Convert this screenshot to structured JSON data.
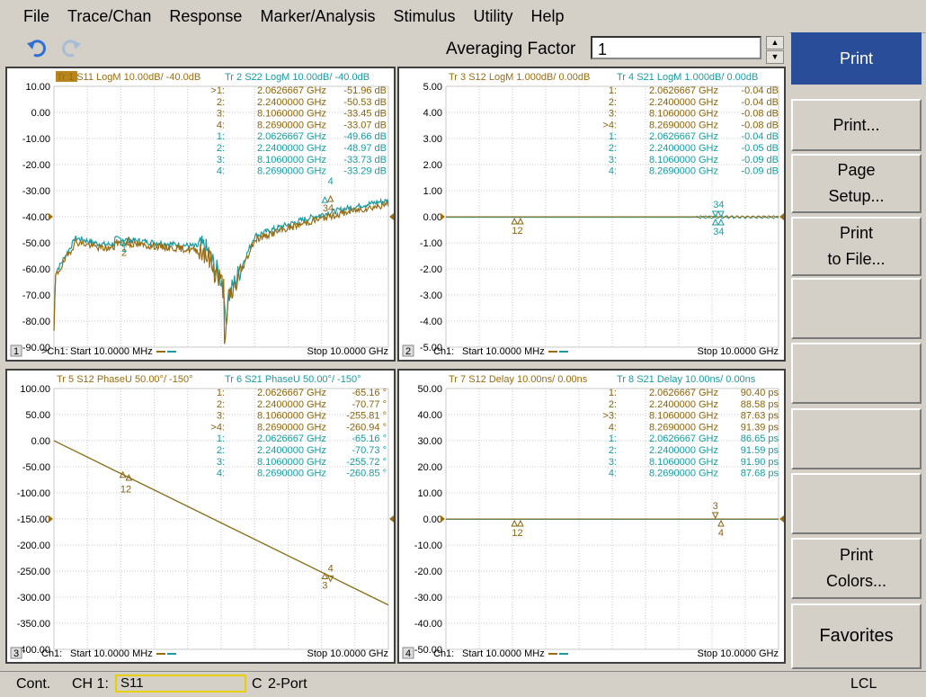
{
  "menu": [
    "File",
    "Trace/Chan",
    "Response",
    "Marker/Analysis",
    "Stimulus",
    "Utility",
    "Help"
  ],
  "toolbar": {
    "undo_icon": "undo-arrow-icon",
    "redo_icon": "redo-arrow-icon",
    "averaging_label": "Averaging Factor",
    "averaging_value": "1"
  },
  "softkeys": [
    {
      "label": "Print",
      "active": true
    },
    {
      "label": "Print..."
    },
    {
      "label": "Page\nSetup..."
    },
    {
      "label": "Print\nto File..."
    },
    {
      "label": ""
    },
    {
      "label": ""
    },
    {
      "label": ""
    },
    {
      "label": ""
    },
    {
      "label": "Print\nColors..."
    },
    {
      "label": "Favorites"
    }
  ],
  "colors": {
    "trace_odd": "#9a6c10",
    "trace_even": "#1b9aa0",
    "marker_gold": "#8a6410",
    "marker_teal": "#1b9aa0"
  },
  "windows": [
    {
      "num": "1",
      "ch_label": ">Ch1:",
      "start": "Start  10.0000 MHz",
      "stop": "Stop  10.0000 GHz",
      "traces": [
        {
          "text": "Tr  1  S11 LogM 10.00dB/  -40.0dB",
          "active": true
        },
        {
          "text": "Tr  2  S22 LogM 10.00dB/  -40.0dB"
        }
      ],
      "yticks": [
        "10.00",
        "0.00",
        "-10.00",
        "-20.00",
        "-30.00",
        "-40.00",
        "-50.00",
        "-60.00",
        "-70.00",
        "-80.00",
        "-90.00"
      ],
      "ref_index": 5,
      "markers": [
        {
          "n": ">1:",
          "f": "2.0626667 GHz",
          "v": "-51.96 dB",
          "c": "gold"
        },
        {
          "n": "2:",
          "f": "2.2400000 GHz",
          "v": "-50.53 dB",
          "c": "gold"
        },
        {
          "n": "3:",
          "f": "8.1060000 GHz",
          "v": "-33.45 dB",
          "c": "gold"
        },
        {
          "n": "4:",
          "f": "8.2690000 GHz",
          "v": "-33.07 dB",
          "c": "gold"
        },
        {
          "n": "1:",
          "f": "2.0626667 GHz",
          "v": "-49.66 dB",
          "c": "teal"
        },
        {
          "n": "2:",
          "f": "2.2400000 GHz",
          "v": "-48.97 dB",
          "c": "teal"
        },
        {
          "n": "3:",
          "f": "8.1060000 GHz",
          "v": "-33.73 dB",
          "c": "teal"
        },
        {
          "n": "4:",
          "f": "8.2690000 GHz",
          "v": "-33.29 dB",
          "c": "teal"
        }
      ],
      "mlabels": [
        "1",
        "2",
        "3",
        "4",
        "34"
      ]
    },
    {
      "num": "2",
      "ch_label": "Ch1:",
      "start": "Start  10.0000 MHz",
      "stop": "Stop  10.0000 GHz",
      "traces": [
        {
          "text": "Tr  3  S12 LogM 1.000dB/  0.00dB"
        },
        {
          "text": "Tr  4  S21 LogM 1.000dB/  0.00dB"
        }
      ],
      "yticks": [
        "5.00",
        "4.00",
        "3.00",
        "2.00",
        "1.00",
        "0.00",
        "-1.00",
        "-2.00",
        "-3.00",
        "-4.00",
        "-5.00"
      ],
      "ref_index": 5,
      "markers": [
        {
          "n": "1:",
          "f": "2.0626667 GHz",
          "v": "-0.04 dB",
          "c": "gold"
        },
        {
          "n": "2:",
          "f": "2.2400000 GHz",
          "v": "-0.04 dB",
          "c": "gold"
        },
        {
          "n": "3:",
          "f": "8.1060000 GHz",
          "v": "-0.08 dB",
          "c": "gold"
        },
        {
          "n": ">4:",
          "f": "8.2690000 GHz",
          "v": "-0.08 dB",
          "c": "gold"
        },
        {
          "n": "1:",
          "f": "2.0626667 GHz",
          "v": "-0.04 dB",
          "c": "teal"
        },
        {
          "n": "2:",
          "f": "2.2400000 GHz",
          "v": "-0.05 dB",
          "c": "teal"
        },
        {
          "n": "3:",
          "f": "8.1060000 GHz",
          "v": "-0.09 dB",
          "c": "teal"
        },
        {
          "n": "4:",
          "f": "8.2690000 GHz",
          "v": "-0.09 dB",
          "c": "teal"
        }
      ],
      "mlabels": [
        "12",
        "34",
        "34"
      ]
    },
    {
      "num": "3",
      "ch_label": "Ch1:",
      "start": "Start  10.0000 MHz",
      "stop": "Stop  10.0000 GHz",
      "traces": [
        {
          "text": "Tr  5  S12 PhaseU 50.00°/  -150°"
        },
        {
          "text": "Tr  6  S21 PhaseU 50.00°/  -150°"
        }
      ],
      "yticks": [
        "100.00",
        "50.00",
        "0.00",
        "-50.00",
        "-100.00",
        "-150.00",
        "-200.00",
        "-250.00",
        "-300.00",
        "-350.00",
        "-400.00"
      ],
      "ref_index": 5,
      "markers": [
        {
          "n": "1:",
          "f": "2.0626667 GHz",
          "v": "-65.16 °",
          "c": "gold"
        },
        {
          "n": "2:",
          "f": "2.2400000 GHz",
          "v": "-70.77 °",
          "c": "gold"
        },
        {
          "n": "3:",
          "f": "8.1060000 GHz",
          "v": "-255.81 °",
          "c": "gold"
        },
        {
          "n": ">4:",
          "f": "8.2690000 GHz",
          "v": "-260.94 °",
          "c": "gold"
        },
        {
          "n": "1:",
          "f": "2.0626667 GHz",
          "v": "-65.16 °",
          "c": "teal"
        },
        {
          "n": "2:",
          "f": "2.2400000 GHz",
          "v": "-70.73 °",
          "c": "teal"
        },
        {
          "n": "3:",
          "f": "8.1060000 GHz",
          "v": "-255.72 °",
          "c": "teal"
        },
        {
          "n": "4:",
          "f": "8.2690000 GHz",
          "v": "-260.85 °",
          "c": "teal"
        }
      ],
      "mlabels": [
        "12",
        "4",
        "3"
      ]
    },
    {
      "num": "4",
      "ch_label": "Ch1:",
      "start": "Start  10.0000 MHz",
      "stop": "Stop  10.0000 GHz",
      "traces": [
        {
          "text": "Tr  7  S12 Delay 10.00ns/  0.00ns"
        },
        {
          "text": "Tr  8  S21 Delay 10.00ns/  0.00ns"
        }
      ],
      "yticks": [
        "50.00",
        "40.00",
        "30.00",
        "20.00",
        "10.00",
        "0.00",
        "-10.00",
        "-20.00",
        "-30.00",
        "-40.00",
        "-50.00"
      ],
      "ref_index": 5,
      "markers": [
        {
          "n": "1:",
          "f": "2.0626667 GHz",
          "v": "90.40 ps",
          "c": "gold"
        },
        {
          "n": "2:",
          "f": "2.2400000 GHz",
          "v": "88.58 ps",
          "c": "gold"
        },
        {
          "n": ">3:",
          "f": "8.1060000 GHz",
          "v": "87.63 ps",
          "c": "gold"
        },
        {
          "n": "4:",
          "f": "8.2690000 GHz",
          "v": "91.39 ps",
          "c": "gold"
        },
        {
          "n": "1:",
          "f": "2.0626667 GHz",
          "v": "86.65 ps",
          "c": "teal"
        },
        {
          "n": "2:",
          "f": "2.2400000 GHz",
          "v": "91.59 ps",
          "c": "teal"
        },
        {
          "n": "3:",
          "f": "8.1060000 GHz",
          "v": "91.90 ps",
          "c": "teal"
        },
        {
          "n": "4:",
          "f": "8.2690000 GHz",
          "v": "87.68 ps",
          "c": "teal"
        }
      ],
      "mlabels": [
        "12",
        "3",
        "4"
      ]
    }
  ],
  "status": {
    "mode": "Cont.",
    "channel": "CH 1:",
    "measurement": "S11",
    "cal": "C",
    "port": "2-Port",
    "remote": "LCL"
  }
}
